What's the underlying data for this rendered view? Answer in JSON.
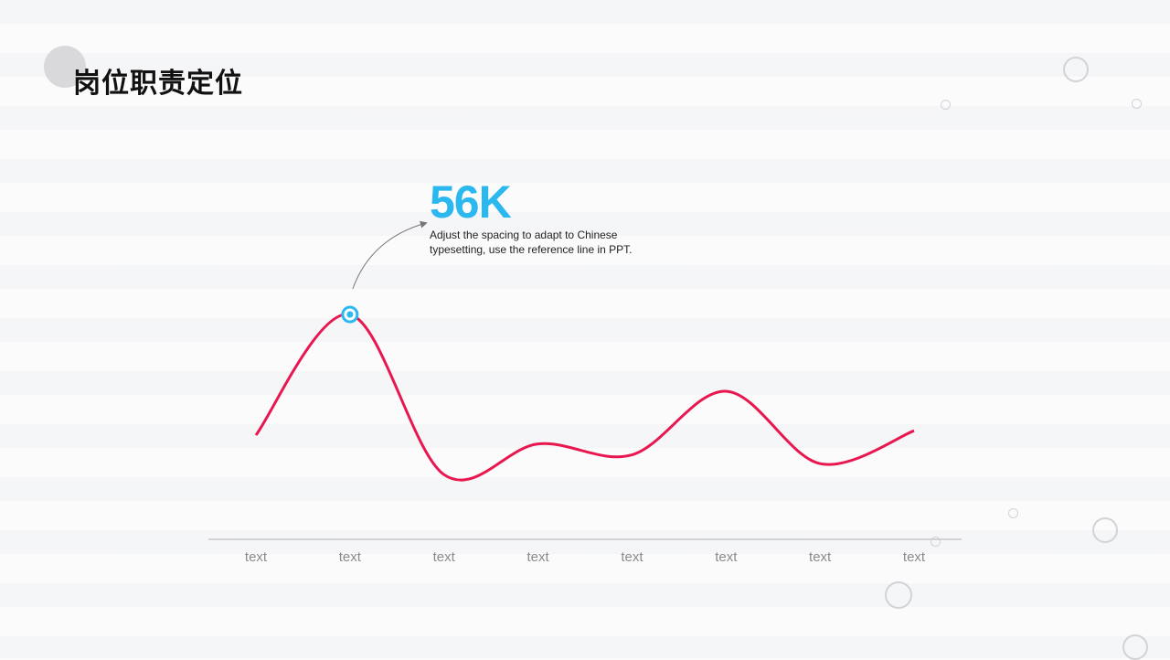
{
  "title": "岗位职责定位",
  "highlight": {
    "value": "56K",
    "description": "Adjust the spacing  to adapt to Chinese typesetting, use the reference line  in PPT."
  },
  "colors": {
    "line": "#e8174f",
    "accent": "#2bb8ef",
    "axis": "#c8c8c8"
  },
  "chart_data": {
    "type": "line",
    "categories": [
      "text",
      "text",
      "text",
      "text",
      "text",
      "text",
      "text",
      "text"
    ],
    "series": [
      {
        "values": [
          30,
          85,
          12,
          26,
          21,
          50,
          17,
          32
        ]
      }
    ],
    "ylim": [
      0,
      100
    ],
    "highlight_index": 1,
    "grid": false,
    "smooth": true
  }
}
